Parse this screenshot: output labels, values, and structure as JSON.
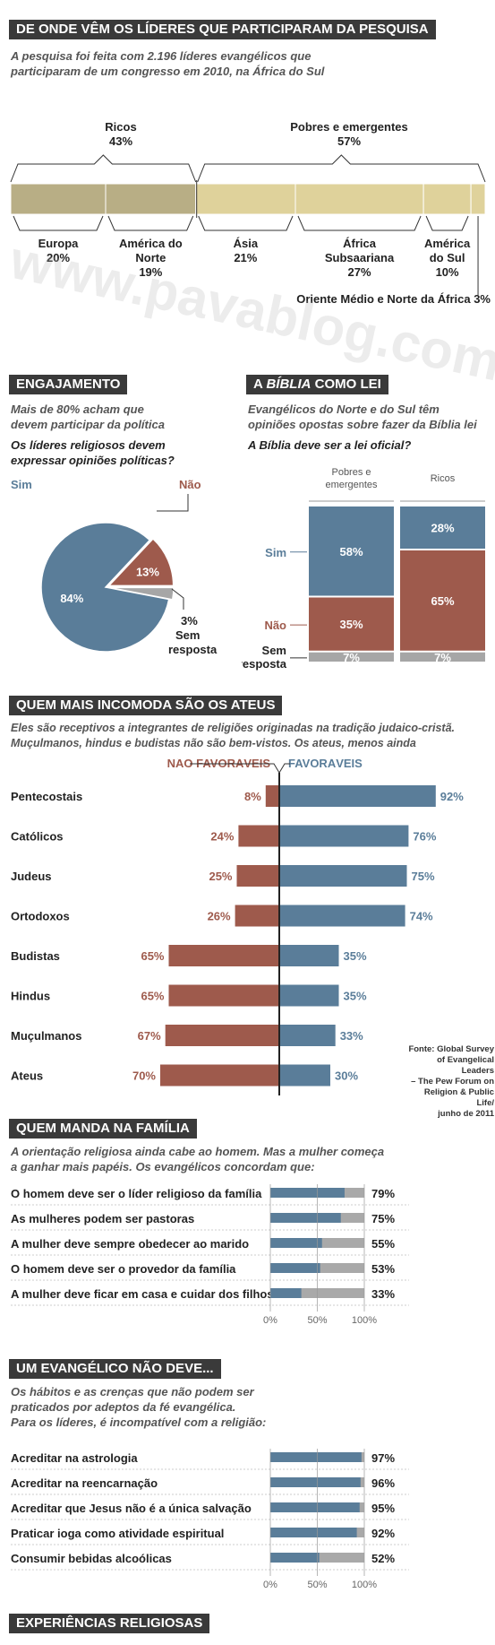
{
  "colors": {
    "blue": "#5a7d99",
    "red": "#9e5a4c",
    "gray": "#a6a6a6",
    "khaki": "#b8ae85",
    "yellow": "#dfd29b",
    "header": "#3a3a3a"
  },
  "watermark": "www.pavablog.com",
  "section1": {
    "title": "DE ONDE VÊM OS LÍDERES QUE PARTICIPARAM DA PESQUISA",
    "subtitle_l1": "A pesquisa foi feita com 2.196 líderes evangélicos que",
    "subtitle_l2": "participaram de um congresso em 2010, na África do Sul",
    "groups": [
      {
        "name": "Ricos",
        "value": "43%"
      },
      {
        "name": "Pobres e emergentes",
        "value": "57%"
      }
    ]
  },
  "section2": {
    "title": "ENGAJAMENTO",
    "subtitle_l1": "Mais de 80% acham que",
    "subtitle_l2": "devem participar da política",
    "question_l1": "Os líderes religiosos devem",
    "question_l2": "expressar opiniões políticas?",
    "label_sim": "Sim",
    "label_nao": "Não",
    "label_sem_l1": "Sem",
    "label_sem_l2": "resposta"
  },
  "section3": {
    "title_a": "A ",
    "title_b": "BÍBLIA",
    "title_c": " COMO LEI",
    "subtitle_l1": "Evangélicos do Norte e do Sul têm",
    "subtitle_l2": "opiniões opostas sobre fazer da Bíblia lei",
    "question": "A Bíblia deve ser a lei oficial?",
    "col1_l1": "Pobres e",
    "col1_l2": "emergentes",
    "col2": "Ricos",
    "label_sim": "Sim",
    "label_nao": "Não",
    "label_sem_l1": "Sem",
    "label_sem_l2": "resposta"
  },
  "section4": {
    "title": "QUEM MAIS INCOMODA SÃO OS ATEUS",
    "subtitle_l1": "Eles são receptivos a integrantes de religiões originadas na tradição judaico-cristã.",
    "subtitle_l2": "Muçulmanos, hindus e budistas não são bem-vistos. Os ateus, menos ainda",
    "legend_neg": "NÃO FAVORÁVEIS",
    "legend_pos": "FAVORÁVEIS",
    "source_l1": "Fonte: Global Survey",
    "source_l2": "of Evangelical Leaders",
    "source_l3": "– The Pew Forum on",
    "source_l4": "Religion & Public Life/",
    "source_l5": "junho de 2011"
  },
  "section5": {
    "title": "QUEM MANDA NA FAMÍLIA",
    "subtitle_l1": "A orientação religiosa ainda cabe ao homem. Mas a mulher começa",
    "subtitle_l2": "a ganhar mais papéis. Os evangélicos concordam que:"
  },
  "section6": {
    "title": "UM EVANGÉLICO NÃO DEVE...",
    "subtitle_l1": "Os hábitos e as crenças que não podem ser",
    "subtitle_l2": "praticados por adeptos da fé evangélica.",
    "subtitle_l3": "Para os líderes, é incompatível com a religião:"
  },
  "section7": {
    "title": "EXPERIÊNCIAS RELIGIOSAS"
  },
  "chart_data": [
    {
      "type": "bar",
      "title": "DE ONDE VÊM OS LÍDERES QUE PARTICIPARAM DA PESQUISA",
      "orientation": "horizontal-stacked",
      "categories": [
        "Europa",
        "América do Norte",
        "Ásia",
        "África Subsaariana",
        "América do Sul",
        "Oriente Médio e Norte da África"
      ],
      "labels": [
        "Europa",
        "América do\nNorte",
        "Ásia",
        "África\nSubsaariana",
        "América\ndo Sul",
        "Oriente Médio e Norte da África"
      ],
      "values": [
        20,
        19,
        21,
        27,
        10,
        3
      ],
      "value_labels": [
        "20%",
        "19%",
        "21%",
        "27%",
        "10%",
        "3%"
      ],
      "group": [
        "Ricos",
        "Ricos",
        "Pobres e emergentes",
        "Pobres e emergentes",
        "Pobres e emergentes",
        "Pobres e emergentes"
      ]
    },
    {
      "type": "pie",
      "title": "Os líderes religiosos devem expressar opiniões políticas?",
      "categories": [
        "Sim",
        "Não",
        "Sem resposta"
      ],
      "values": [
        84,
        13,
        3
      ],
      "value_labels": [
        "84%",
        "13%",
        "3%"
      ]
    },
    {
      "type": "bar",
      "title": "A Bíblia deve ser a lei oficial?",
      "orientation": "vertical-stacked-100",
      "categories": [
        "Pobres e emergentes",
        "Ricos"
      ],
      "series": [
        {
          "name": "Sim",
          "values": [
            58,
            28
          ],
          "value_labels": [
            "58%",
            "28%"
          ]
        },
        {
          "name": "Não",
          "values": [
            35,
            65
          ],
          "value_labels": [
            "35%",
            "65%"
          ]
        },
        {
          "name": "Sem resposta",
          "values": [
            7,
            7
          ],
          "value_labels": [
            "7%",
            "7%"
          ]
        }
      ]
    },
    {
      "type": "bar",
      "title": "QUEM MAIS INCOMODA SÃO OS ATEUS",
      "orientation": "diverging",
      "categories": [
        "Pentecostais",
        "Católicos",
        "Judeus",
        "Ortodoxos",
        "Budistas",
        "Hindus",
        "Muçulmanos",
        "Ateus"
      ],
      "series": [
        {
          "name": "NÃO FAVORÁVEIS",
          "values": [
            8,
            24,
            25,
            26,
            65,
            65,
            67,
            70
          ],
          "value_labels": [
            "8%",
            "24%",
            "25%",
            "26%",
            "65%",
            "65%",
            "67%",
            "70%"
          ]
        },
        {
          "name": "FAVORÁVEIS",
          "values": [
            92,
            76,
            75,
            74,
            35,
            35,
            33,
            30
          ],
          "value_labels": [
            "92%",
            "76%",
            "75%",
            "74%",
            "35%",
            "35%",
            "33%",
            "30%"
          ]
        }
      ]
    },
    {
      "type": "bar",
      "title": "QUEM MANDA NA FAMÍLIA",
      "orientation": "horizontal",
      "categories": [
        "O homem deve ser o líder religioso da família",
        "As mulheres podem ser pastoras",
        "A mulher deve sempre obedecer ao marido",
        "O homem deve ser o provedor da família",
        "A mulher deve ficar em casa e cuidar dos filhos"
      ],
      "values": [
        79,
        75,
        55,
        53,
        33
      ],
      "value_labels": [
        "79%",
        "75%",
        "55%",
        "53%",
        "33%"
      ],
      "xlim": [
        0,
        100
      ],
      "xticks": [
        "0%",
        "50%",
        "100%"
      ]
    },
    {
      "type": "bar",
      "title": "UM EVANGÉLICO NÃO DEVE...",
      "orientation": "horizontal",
      "categories": [
        "Acreditar na astrologia",
        "Acreditar na reencarnação",
        "Acreditar que Jesus não é a única salvação",
        "Praticar ioga como atividade espiritual",
        "Consumir bebidas alcoólicas"
      ],
      "values": [
        97,
        96,
        95,
        92,
        52
      ],
      "value_labels": [
        "97%",
        "96%",
        "95%",
        "92%",
        "52%"
      ],
      "xlim": [
        0,
        100
      ],
      "xticks": [
        "0%",
        "50%",
        "100%"
      ]
    }
  ]
}
